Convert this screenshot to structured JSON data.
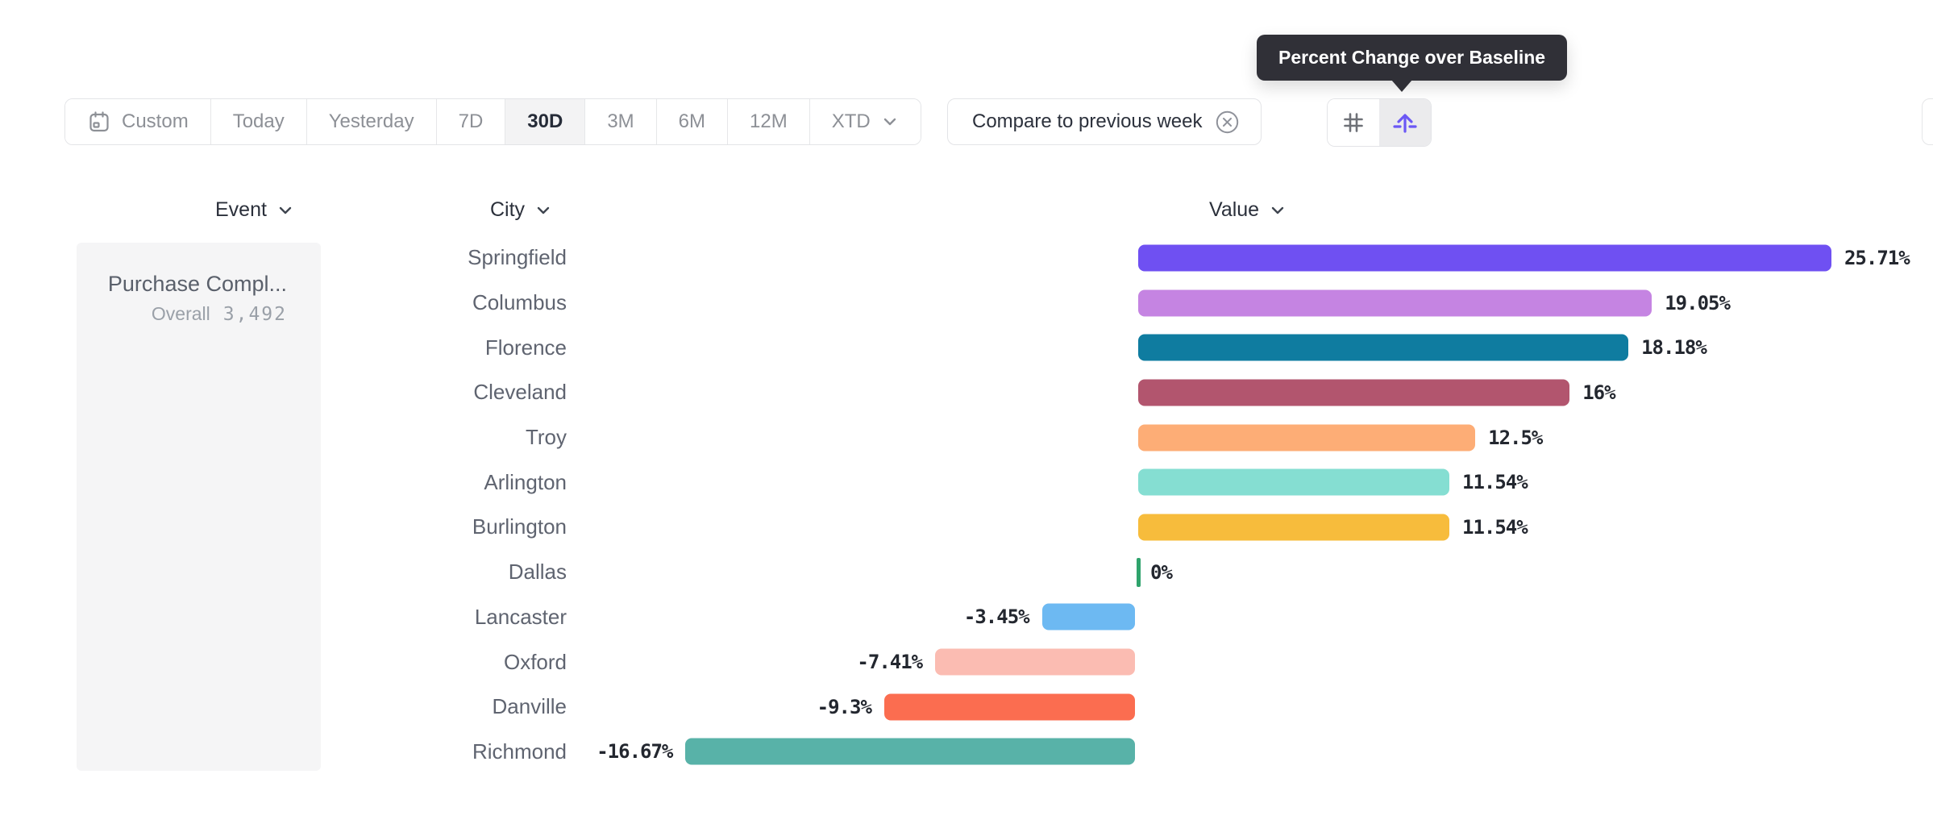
{
  "toolbar": {
    "ranges": [
      "Custom",
      "Today",
      "Yesterday",
      "7D",
      "30D",
      "3M",
      "6M",
      "12M",
      "XTD"
    ],
    "selected_range": "30D",
    "compare": {
      "label": "Compare to previous week"
    },
    "view_modes": {
      "grid_icon": "number-grid-icon",
      "baseline_icon": "percent-change-baseline-icon",
      "selected": "baseline"
    }
  },
  "tooltip": {
    "text": "Percent Change over Baseline"
  },
  "columns": {
    "event": "Event",
    "city": "City",
    "value": "Value"
  },
  "event_panel": {
    "event_name": "Purchase Compl...",
    "overall_label": "Overall",
    "overall_value": "3,492"
  },
  "chart_data": {
    "type": "bar",
    "orientation": "horizontal",
    "value_unit": "%",
    "title": "Value",
    "baseline": 0,
    "xlim": [
      -16.67,
      25.71
    ],
    "grid": false,
    "legend": false,
    "categories": [
      "Springfield",
      "Columbus",
      "Florence",
      "Cleveland",
      "Troy",
      "Arlington",
      "Burlington",
      "Dallas",
      "Lancaster",
      "Oxford",
      "Danville",
      "Richmond"
    ],
    "values": [
      25.71,
      19.05,
      18.18,
      16,
      12.5,
      11.54,
      11.54,
      0,
      -3.45,
      -7.41,
      -9.3,
      -16.67
    ],
    "value_labels": [
      "25.71%",
      "19.05%",
      "18.18%",
      "16%",
      "12.5%",
      "11.54%",
      "11.54%",
      "0%",
      "-3.45%",
      "-7.41%",
      "-9.3%",
      "-16.67%"
    ],
    "bar_colors": [
      "#6f50f2",
      "#c584e2",
      "#0f7ca0",
      "#b2556e",
      "#fdad76",
      "#85ded2",
      "#f7bc3c",
      "#2fa36c",
      "#6db9f2",
      "#fbbcb2",
      "#fb6d50",
      "#58b2a8"
    ]
  },
  "colors": {
    "accent_purple": "#6b5bf2",
    "selected_bg": "#f3f3f4",
    "border": "#e3e4e7",
    "text_dark": "#2c313c",
    "text_gray": "#8d9096",
    "label_gray": "#5f6470",
    "muted_gray": "#9aa0a8",
    "tooltip_bg": "#303037",
    "panel_bg": "#f5f5f6"
  }
}
